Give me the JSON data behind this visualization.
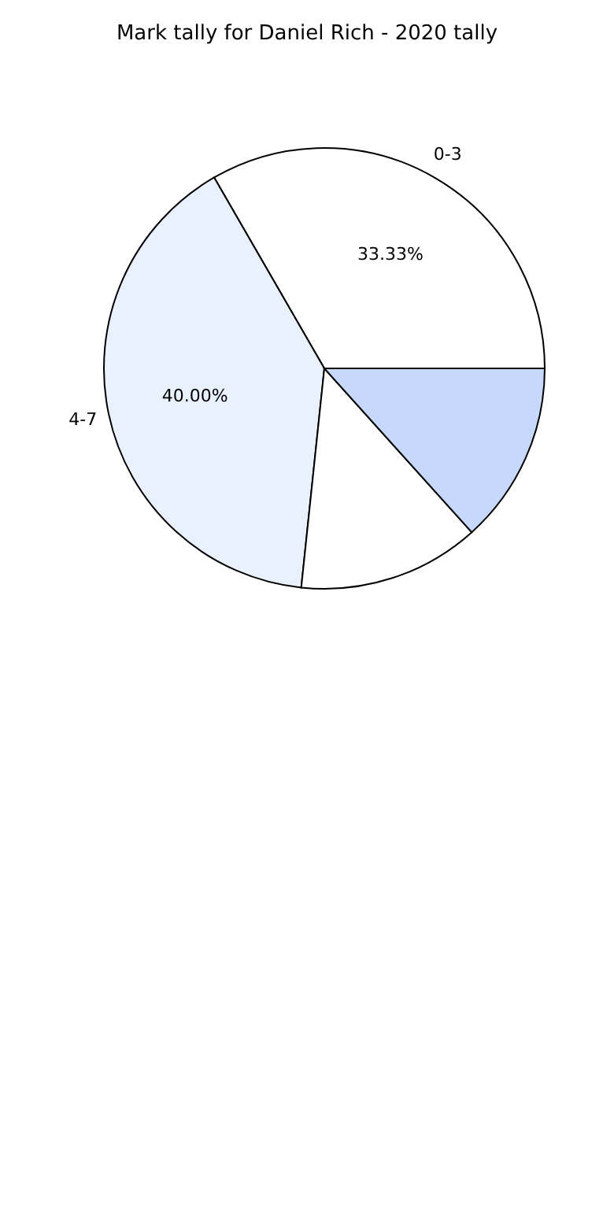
{
  "chart_data": {
    "type": "pie",
    "title": "Mark tally for Daniel Rich - 2020 tally",
    "categories": [
      "0-3",
      "4-7",
      null,
      null
    ],
    "values": [
      33.33,
      40.0,
      13.33,
      13.34
    ],
    "colors": [
      "#ffffff",
      "#eaf1fe",
      "#ffffff",
      "#c6d9fd"
    ],
    "value_labels": [
      "33.33%",
      "40.00%",
      null,
      null
    ],
    "legend": false
  }
}
